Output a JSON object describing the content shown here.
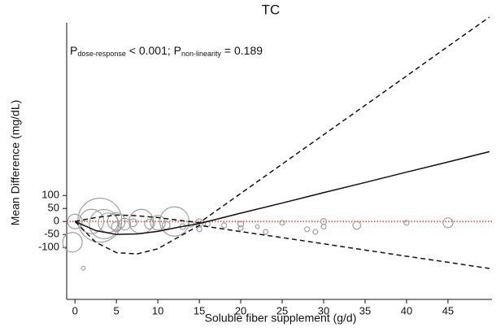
{
  "chart_data": {
    "type": "line",
    "title": "TC",
    "annotation": {
      "parts": [
        "P",
        "dose-response",
        " < 0.001; P",
        "non-linearity",
        " = 0.189"
      ]
    },
    "x_label": "Soluble fiber supplement (g/d)",
    "y_label": "Mean Difference (mg/dL)",
    "xlim": [
      -1,
      50.5
    ],
    "ylim": [
      -300,
      790
    ],
    "xticks": [
      0,
      5,
      10,
      15,
      20,
      25,
      30,
      35,
      40,
      45
    ],
    "yticks": [
      100,
      50,
      0,
      -50,
      -100
    ],
    "x": [
      0,
      2.5,
      5,
      7.5,
      10,
      12.5,
      15,
      20,
      25,
      30,
      35,
      40,
      45,
      50
    ],
    "series": [
      {
        "color": "#111111",
        "dash": false,
        "values": [
          0,
          -35,
          -50,
          -48,
          -38,
          -22,
          -8,
          32,
          71,
          111,
          150,
          190,
          229,
          269
        ]
      },
      {
        "color": "#111111",
        "dash": true,
        "values": [
          0,
          15,
          25,
          22,
          15,
          5,
          -5,
          108,
          221,
          334,
          447,
          560,
          674,
          787
        ]
      },
      {
        "color": "#111111",
        "dash": true,
        "values": [
          0,
          -80,
          -120,
          -125,
          -105,
          -60,
          -15,
          -39,
          -62,
          -86,
          -110,
          -134,
          -157,
          -181
        ]
      }
    ],
    "points": {
      "color": "#a0a0a0",
      "x": [
        0,
        -0.3,
        1,
        2,
        3,
        3.5,
        4,
        5,
        5,
        6,
        7,
        8,
        9,
        10,
        11,
        12,
        13,
        14,
        15,
        15,
        16,
        18,
        20,
        20,
        22,
        23,
        25,
        28,
        29,
        30,
        30,
        34,
        40,
        45
      ],
      "values": [
        0,
        -80,
        -180,
        0,
        5,
        -10,
        -5,
        0,
        -20,
        -10,
        -5,
        0,
        -10,
        -5,
        -15,
        0,
        -20,
        -10,
        -5,
        -30,
        -10,
        -15,
        -10,
        -25,
        -20,
        -40,
        -5,
        -30,
        -40,
        0,
        -20,
        -15,
        -5,
        -5
      ],
      "sizes": [
        15,
        20,
        4,
        25,
        45,
        30,
        20,
        18,
        10,
        12,
        8,
        25,
        10,
        15,
        8,
        30,
        6,
        6,
        8,
        5,
        5,
        5,
        6,
        5,
        4,
        5,
        5,
        5,
        5,
        6,
        5,
        8,
        5,
        10
      ]
    },
    "reference_line": {
      "value": 0,
      "color": "#e06060"
    }
  }
}
